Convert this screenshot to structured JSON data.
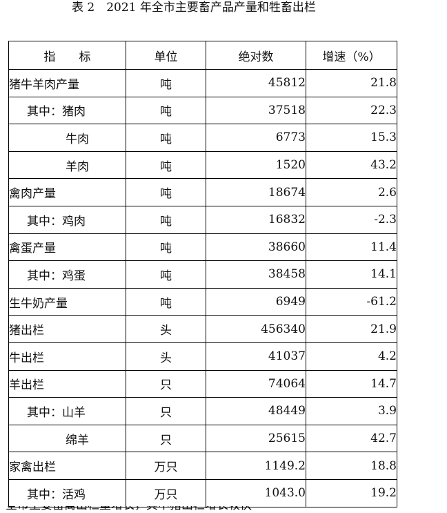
{
  "title": "表 2　2021 年全市主要畜产品产量和牲畜出栏",
  "headers": {
    "item": "指　　标",
    "unit": "单位",
    "absolute": "绝对数",
    "growth": "增速（%）"
  },
  "rows": [
    {
      "item": "猪牛羊肉产量",
      "unit": "吨",
      "absolute": "45812",
      "growth": "21.8"
    },
    {
      "item": "其中：猪肉",
      "unit": "吨",
      "absolute": "37518",
      "growth": "22.3"
    },
    {
      "item": "牛肉",
      "unit": "吨",
      "absolute": "6773",
      "growth": "15.3"
    },
    {
      "item": "羊肉",
      "unit": "吨",
      "absolute": "1520",
      "growth": "43.2"
    },
    {
      "item": "禽肉产量",
      "unit": "吨",
      "absolute": "18674",
      "growth": "2.6"
    },
    {
      "item": "其中：鸡肉",
      "unit": "吨",
      "absolute": "16832",
      "growth": "-2.3"
    },
    {
      "item": "禽蛋产量",
      "unit": "吨",
      "absolute": "38660",
      "growth": "11.4"
    },
    {
      "item": "其中：鸡蛋",
      "unit": "吨",
      "absolute": "38458",
      "growth": "14.1"
    },
    {
      "item": "生牛奶产量",
      "unit": "吨",
      "absolute": "6949",
      "growth": "-61.2"
    },
    {
      "item": "猪出栏",
      "unit": "头",
      "absolute": "456340",
      "growth": "21.9"
    },
    {
      "item": "牛出栏",
      "unit": "头",
      "absolute": "41037",
      "growth": "4.2"
    },
    {
      "item": "羊出栏",
      "unit": "只",
      "absolute": "74064",
      "growth": "14.7"
    },
    {
      "item": "其中：山羊",
      "unit": "只",
      "absolute": "48449",
      "growth": "3.9"
    },
    {
      "item": "绵羊",
      "unit": "只",
      "absolute": "25615",
      "growth": "42.7"
    },
    {
      "item": "家禽出栏",
      "unit": "万只",
      "absolute": "1149.2",
      "growth": "18.8"
    },
    {
      "item": "其中：活鸡",
      "unit": "万只",
      "absolute": "1043.0",
      "growth": "19.2"
    }
  ],
  "footer_fragment": "全市主要畜禽出栏量增长，其中猪出栏增长较快"
}
